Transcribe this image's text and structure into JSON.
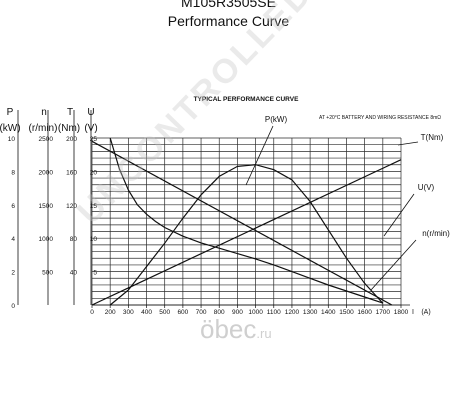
{
  "chart_data": {
    "type": "line",
    "title": "M105R3505SE",
    "subtitle": "Performance Curve",
    "inner_title": "TYPICAL PERFORMANCE CURVE",
    "note": "AT +20°C  BATTERY AND WIRING RESISTANCE 8mΩ",
    "xlabel": "I (A)",
    "x_label_parts": [
      "I",
      "(A)"
    ],
    "xlim": [
      0,
      1800
    ],
    "x_ticks": [
      "0",
      "200",
      "300",
      "400",
      "500",
      "600",
      "700",
      "800",
      "900",
      "1000",
      "1100",
      "1200",
      "1300",
      "1400",
      "1500",
      "1600",
      "1700",
      "1800"
    ],
    "y_axes": [
      {
        "symbol": "P",
        "unit": "(kW)",
        "range": [
          0,
          10
        ],
        "ticks": [
          "0",
          "2",
          "4",
          "6",
          "8",
          "10"
        ]
      },
      {
        "symbol": "n",
        "unit": "(r/min)",
        "range": [
          0,
          2500
        ],
        "ticks": [
          "500",
          "1000",
          "1500",
          "2000",
          "2500"
        ]
      },
      {
        "symbol": "T",
        "unit": "(Nm)",
        "range": [
          0,
          200
        ],
        "ticks": [
          "40",
          "80",
          "120",
          "160",
          "200"
        ]
      },
      {
        "symbol": "U",
        "unit": "(V)",
        "range": [
          0,
          25
        ],
        "ticks": [
          "5",
          "10",
          "15",
          "20",
          "25"
        ]
      }
    ],
    "grid": true,
    "series": [
      {
        "name": "P(kW)",
        "axis": "P",
        "x": [
          200,
          300,
          400,
          500,
          600,
          700,
          800,
          900,
          1000,
          1100,
          1200,
          1300,
          1400,
          1500,
          1600,
          1700
        ],
        "y": [
          0,
          0.9,
          2.3,
          3.7,
          5.2,
          6.6,
          7.7,
          8.3,
          8.4,
          8.1,
          7.5,
          6.2,
          4.5,
          2.8,
          1.3,
          0.1
        ]
      },
      {
        "name": "T(Nm)",
        "axis": "T",
        "x": [
          0,
          1800
        ],
        "y": [
          0,
          174
        ]
      },
      {
        "name": "U(V)",
        "axis": "U",
        "x": [
          0,
          1750
        ],
        "y": [
          24.5,
          0
        ]
      },
      {
        "name": "n(r/min)",
        "axis": "n",
        "x": [
          200,
          250,
          300,
          350,
          400,
          450,
          500,
          600,
          700,
          800,
          900,
          1000,
          1100,
          1200,
          1300,
          1400,
          1500,
          1600,
          1700
        ],
        "y": [
          2500,
          2040,
          1720,
          1500,
          1360,
          1250,
          1160,
          1030,
          930,
          850,
          770,
          690,
          600,
          500,
          400,
          300,
          210,
          120,
          30
        ]
      }
    ]
  },
  "watermark": "UNCONTROLLED COPY",
  "brand": {
    "name": "öbec",
    "tld": ".ru"
  }
}
